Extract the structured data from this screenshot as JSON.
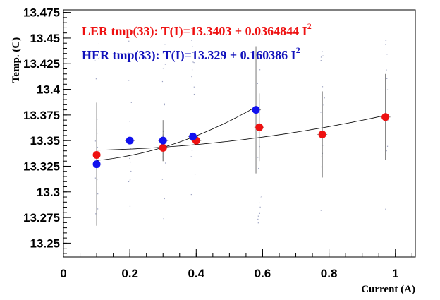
{
  "chart_data": {
    "type": "scatter",
    "xlabel": "Current (A)",
    "ylabel": "Temp. (C)",
    "xlim": [
      0,
      1.06
    ],
    "ylim": [
      13.2365,
      13.4775
    ],
    "x_ticks": [
      "0",
      "0.2",
      "0.4",
      "0.6",
      "0.8",
      "1"
    ],
    "y_ticks": [
      "13.25",
      "13.275",
      "13.3",
      "13.325",
      "13.35",
      "13.375",
      "13.4",
      "13.425",
      "13.45",
      "13.475"
    ],
    "grid": false,
    "legend_position": "top-left",
    "series": [
      {
        "name": "LER tmp(33)",
        "color": "#ee1111",
        "legend_text": "LER tmp(33): T(I)=13.3403 + 0.0364844 I",
        "legend_sup": "2",
        "fit": {
          "a": 13.3403,
          "b": 0.0364844
        },
        "points": [
          {
            "x": 0.1,
            "y": 13.336,
            "yerr": 0.0
          },
          {
            "x": 0.3,
            "y": 13.343,
            "yerr": 0.013
          },
          {
            "x": 0.4,
            "y": 13.35,
            "yerr": 0.0
          },
          {
            "x": 0.59,
            "y": 13.363,
            "yerr": 0.033
          },
          {
            "x": 0.78,
            "y": 13.356,
            "yerr": 0.042
          },
          {
            "x": 0.97,
            "y": 13.373,
            "yerr": 0.042
          }
        ]
      },
      {
        "name": "HER tmp(33)",
        "color": "#1111ee",
        "legend_text": "HER tmp(33): T(I)=13.329 + 0.160386 I",
        "legend_sup": "2",
        "fit": {
          "a": 13.329,
          "b": 0.160386
        },
        "points": [
          {
            "x": 0.1,
            "y": 13.327,
            "yerr": 0.06
          },
          {
            "x": 0.2,
            "y": 13.35,
            "yerr": 0.0
          },
          {
            "x": 0.3,
            "y": 13.35,
            "yerr": 0.02
          },
          {
            "x": 0.39,
            "y": 13.354,
            "yerr": 0.0
          },
          {
            "x": 0.58,
            "y": 13.38,
            "yerr": 0.062
          }
        ]
      }
    ]
  }
}
